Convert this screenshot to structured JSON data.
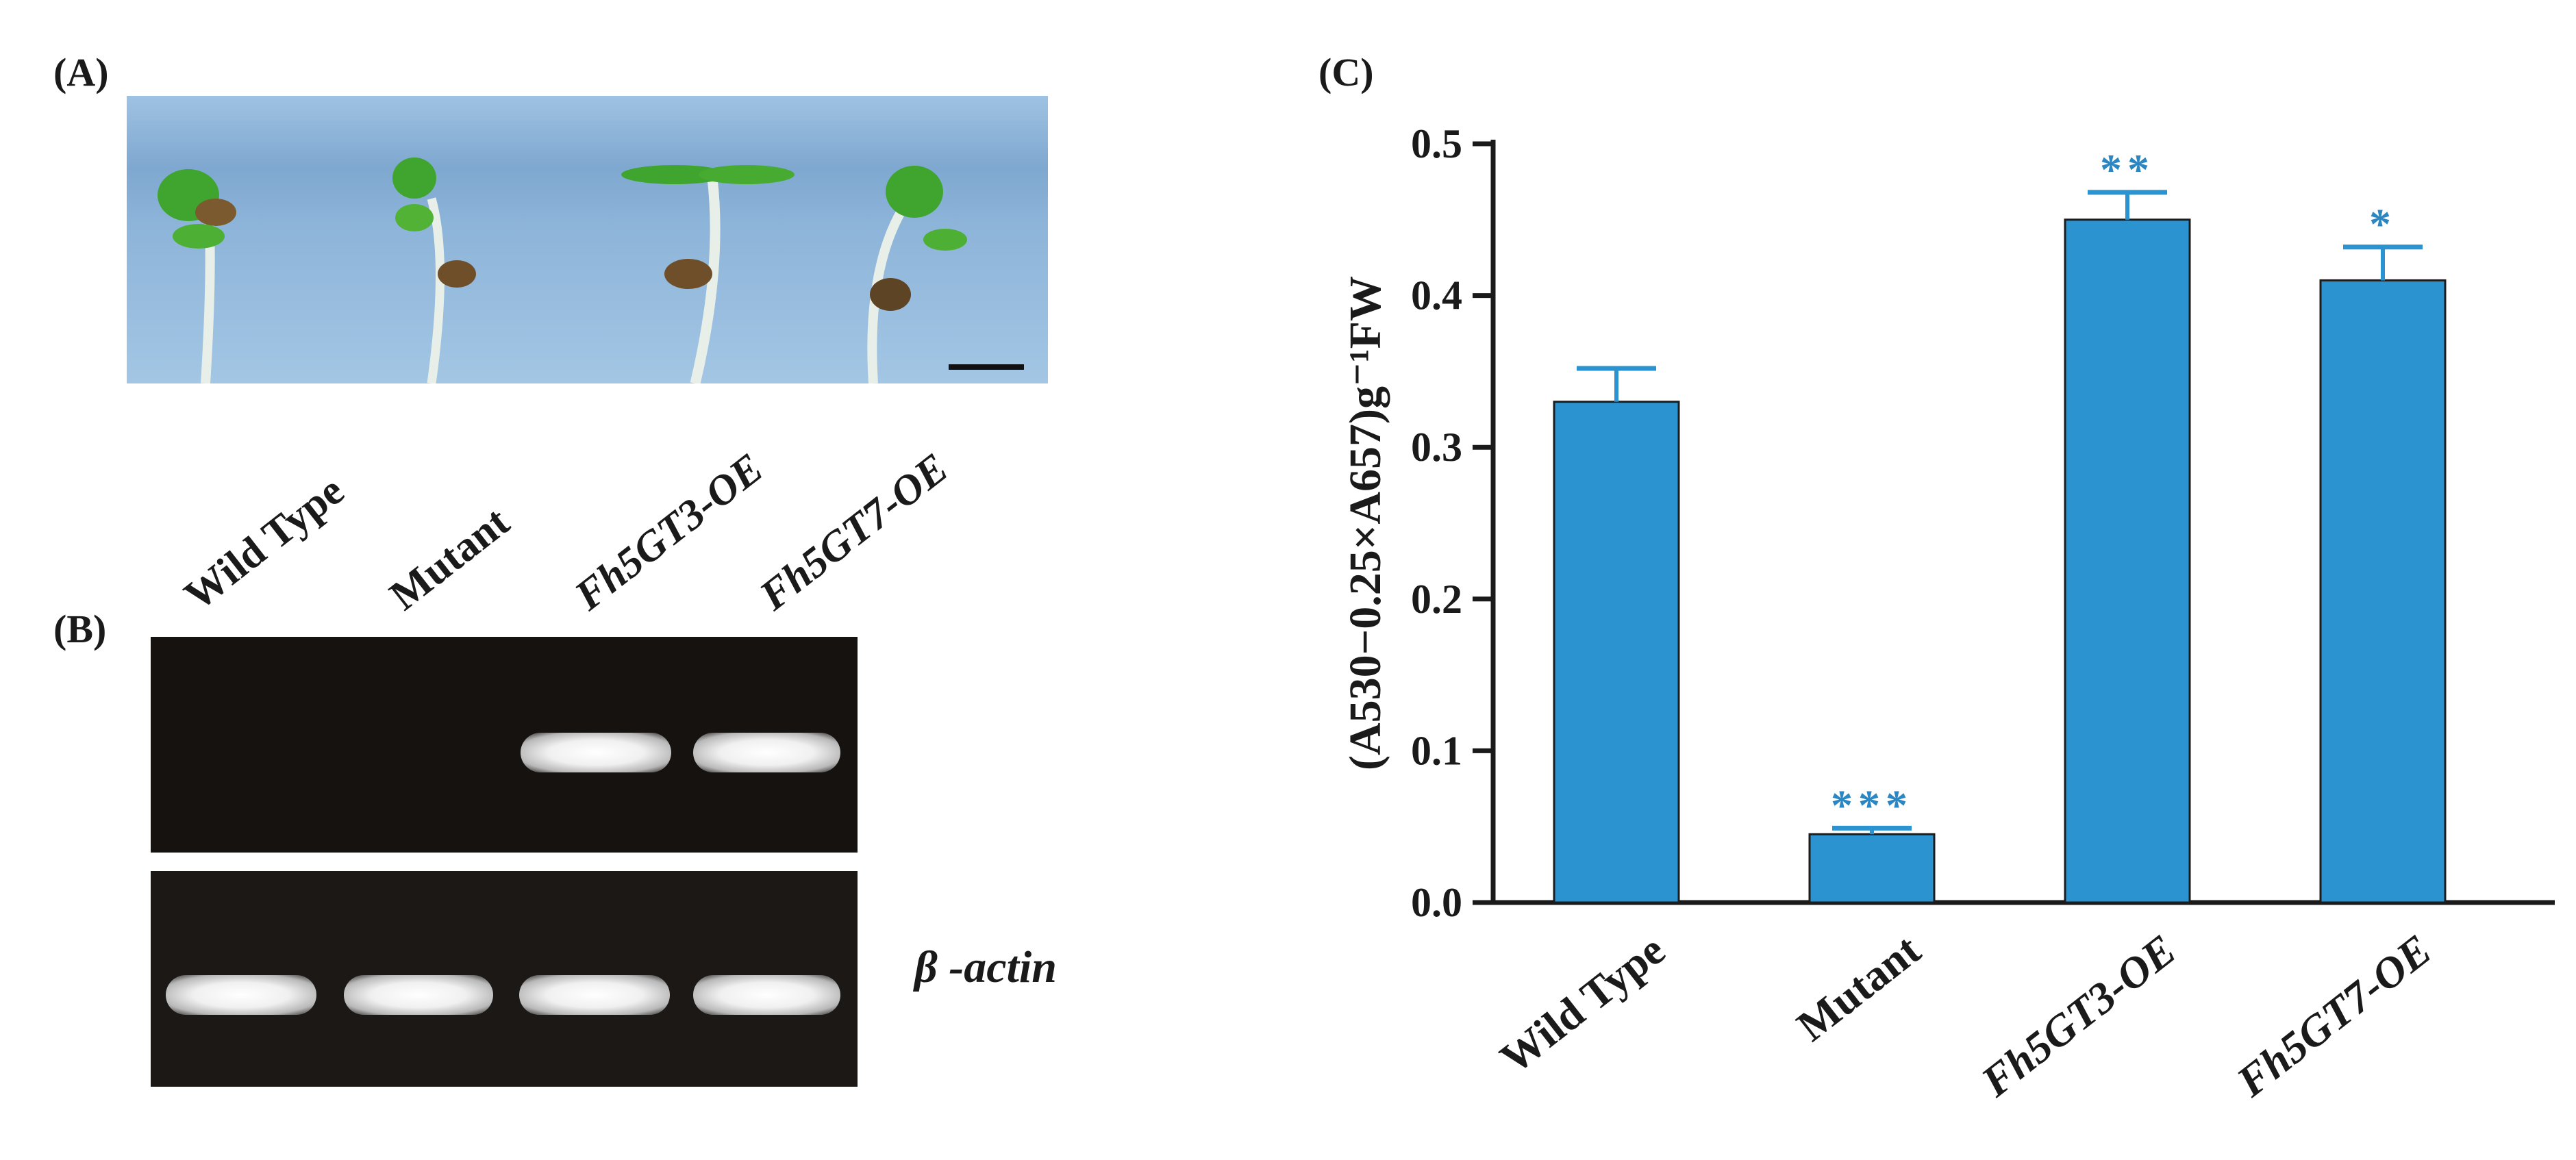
{
  "panels": {
    "a": "(A)",
    "b": "(B)",
    "c": "(C)"
  },
  "lanes": {
    "wild_type": "Wild Type",
    "mutant": "Mutant",
    "oe3": "Fh5GT3-OE",
    "oe7": "Fh5GT7-OE"
  },
  "gel": {
    "loading_label": "β -actin"
  },
  "colors": {
    "bar": "#2b93cf",
    "significance": "#2b86c2",
    "photo_bg": "#8fb6d9"
  },
  "chart_data": {
    "type": "bar",
    "categories": [
      "Wild Type",
      "Mutant",
      "Fh5GT3-OE",
      "Fh5GT7-OE"
    ],
    "values": [
      0.33,
      0.045,
      0.45,
      0.41
    ],
    "errors": [
      0.022,
      0.004,
      0.018,
      0.022
    ],
    "significance": [
      "",
      "***",
      "**",
      "*"
    ],
    "ylabel": "(A530−0.25×A657)g⁻¹FW",
    "ylim": [
      0,
      0.5
    ],
    "yticks": [
      "0.0",
      "0.1",
      "0.2",
      "0.3",
      "0.4",
      "0.5"
    ],
    "grid": false
  }
}
